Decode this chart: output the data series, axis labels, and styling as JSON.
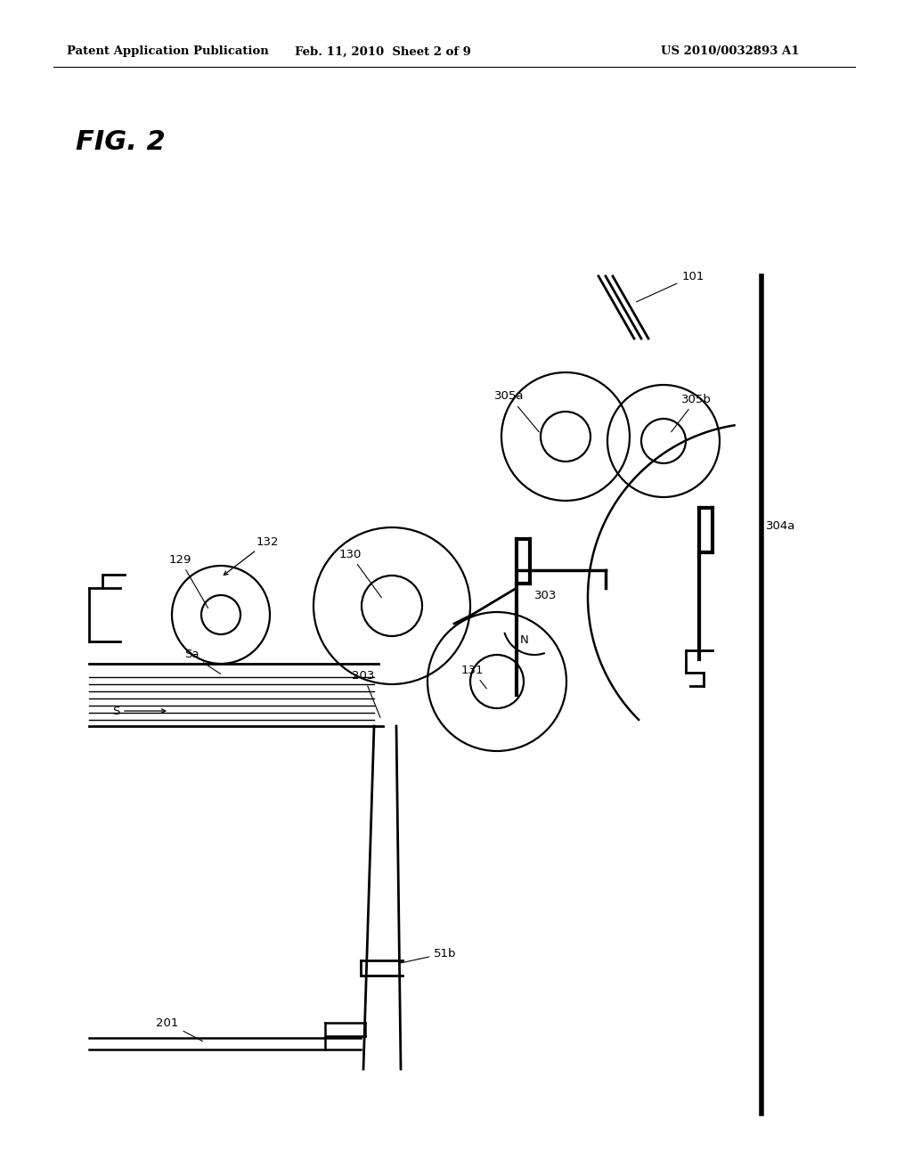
{
  "bg_color": "#ffffff",
  "header_left": "Patent Application Publication",
  "header_mid": "Feb. 11, 2010  Sheet 2 of 9",
  "header_right": "US 2010/0032893 A1",
  "fig_label": "FIG. 2",
  "line_color": "#000000",
  "roller_lw": 1.6,
  "struct_lw": 2.0
}
